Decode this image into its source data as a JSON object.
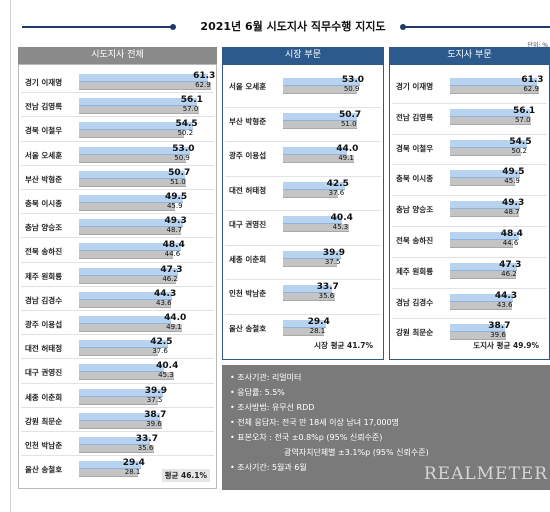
{
  "title": "2021년 6월 시도지사 직무수행 지지도",
  "unit": "단위: %",
  "colors": {
    "current": "#b7d3f0",
    "previous": "#c4c4c4",
    "left_header": "#8a8a8a",
    "panel_header": "#2c5a8c",
    "info_bg": "#7a7a7a"
  },
  "chart_data": [
    {
      "type": "bar",
      "title": "시도지사 전체",
      "categories": [
        "경기 이재명",
        "전남 김영록",
        "경북 이철우",
        "서울 오세훈",
        "부산 박형준",
        "충북 이시종",
        "충남 양승조",
        "전북 송하진",
        "제주 원희룡",
        "경남 김경수",
        "광주 이용섭",
        "대전 허태정",
        "대구 권영진",
        "세종 이춘희",
        "강원 최문순",
        "인천 박남춘",
        "울산 송철호"
      ],
      "series": [
        {
          "values": [
            61.3,
            56.1,
            54.5,
            53.0,
            50.7,
            49.5,
            49.3,
            48.4,
            47.3,
            44.3,
            44.0,
            42.5,
            40.4,
            39.9,
            38.7,
            33.7,
            29.4
          ]
        },
        {
          "values": [
            62.9,
            57.0,
            50.2,
            50.9,
            51.0,
            45.9,
            48.7,
            44.6,
            46.2,
            43.6,
            49.1,
            37.6,
            45.3,
            37.5,
            39.6,
            35.6,
            28.1
          ]
        }
      ],
      "average": "평균 46.1%"
    },
    {
      "type": "bar",
      "title": "시장 부문",
      "categories": [
        "서울 오세훈",
        "부산 박형준",
        "광주 이용섭",
        "대전 허태정",
        "대구 권영진",
        "세종 이춘희",
        "인천 박남춘",
        "울산 송철호"
      ],
      "series": [
        {
          "values": [
            53.0,
            50.7,
            44.0,
            42.5,
            40.4,
            39.9,
            33.7,
            29.4
          ]
        },
        {
          "values": [
            50.9,
            51.0,
            49.1,
            37.6,
            45.3,
            37.5,
            35.6,
            28.1
          ]
        }
      ],
      "average": "시장 평균 41.7%"
    },
    {
      "type": "bar",
      "title": "도지사 부문",
      "categories": [
        "경기 이재명",
        "전남 김영록",
        "경북 이철우",
        "충북 이시종",
        "충남 양승조",
        "전북 송하진",
        "제주 원희룡",
        "경남 김경수",
        "강원 최문순"
      ],
      "series": [
        {
          "values": [
            61.3,
            56.1,
            54.5,
            49.5,
            49.3,
            48.4,
            47.3,
            44.3,
            38.7
          ]
        },
        {
          "values": [
            62.9,
            57.0,
            50.2,
            45.9,
            48.7,
            44.6,
            46.2,
            43.6,
            39.6
          ]
        }
      ],
      "average": "도지사 평균 49.9%"
    }
  ],
  "info": {
    "lines": [
      "• 조사기관: 리얼미터",
      "• 응답률: 5.5%",
      "• 조사방법: 유무선 RDD",
      "• 전체 응답자: 전국 만 18세 이상 남녀 17,000명",
      "• 표본오차 : 전국 ±0.8%p (95% 신뢰수준)",
      "광역자치단체별 ±3.1%p (95% 신뢰수준)",
      "• 조사기간: 5월과 6월"
    ],
    "logo": "REALMETER"
  }
}
